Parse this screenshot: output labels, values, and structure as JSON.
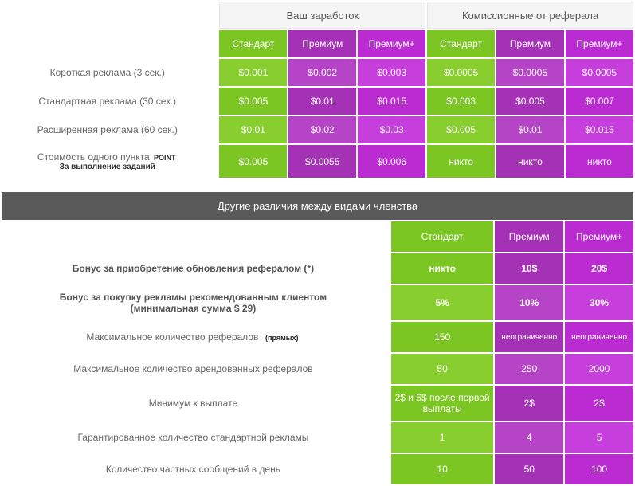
{
  "colors": {
    "green": "#7cc623",
    "green_light": "#89ce2f",
    "purple1": "#a531b7",
    "purple1_light": "#b544c6",
    "purple2": "#ba2bd2",
    "purple2_light": "#c63fdd",
    "banner": "#5a5a5a",
    "grey_bg": "#f5f5f5",
    "text": "#555555"
  },
  "table1": {
    "group_headers": {
      "earn": "Ваш заработок",
      "ref": "Комиссионные от реферала"
    },
    "tiers": {
      "std": "Стандарт",
      "prem": "Премиум",
      "premp": "Премиум+"
    },
    "rows": [
      {
        "label": "Короткая реклама (3 сек.)",
        "earn": {
          "std": "$0.001",
          "prem": "$0.002",
          "premp": "$0.003"
        },
        "ref": {
          "std": "$0.0005",
          "prem": "$0.0005",
          "premp": "$0.0005"
        }
      },
      {
        "label": "Стандартная реклама (30 сек.)",
        "earn": {
          "std": "$0.005",
          "prem": "$0.01",
          "premp": "$0.015"
        },
        "ref": {
          "std": "$0.003",
          "prem": "$0.005",
          "premp": "$0.007"
        }
      },
      {
        "label": "Расширенная реклама (60 сек.)",
        "earn": {
          "std": "$0.01",
          "prem": "$0.02",
          "premp": "$0.03"
        },
        "ref": {
          "std": "$0.005",
          "prem": "$0.01",
          "premp": "$0.015"
        }
      },
      {
        "label": "Стоимость одного пункта",
        "tag": "POINT",
        "sublabel": "За выполнение заданий",
        "earn": {
          "std": "$0.005",
          "prem": "$0.0055",
          "premp": "$0.006"
        },
        "ref": {
          "std": "никто",
          "prem": "никто",
          "premp": "никто"
        }
      }
    ]
  },
  "banner": "Другие различия между видами членства",
  "table2": {
    "tiers": {
      "std": "Стандарт",
      "prem": "Премиум",
      "premp": "Премиум+"
    },
    "rows": [
      {
        "label": "Бонус за приобретение обновления рефералом (*)",
        "bold": true,
        "std": "никто",
        "prem": "10$",
        "premp": "20$"
      },
      {
        "label": "Бонус за покупку рекламы рекомендованным клиентом",
        "label2": "(минимальная сумма $ 29)",
        "bold": true,
        "std": "5%",
        "prem": "10%",
        "premp": "30%"
      },
      {
        "label": "Максимальное количество рефералов",
        "tag": "(прямых)",
        "std": "150",
        "prem": "неограниченно",
        "premp": "неограниченно"
      },
      {
        "label": "Максимальное количество арендованных рефералов",
        "std": "50",
        "prem": "250",
        "premp": "2000"
      },
      {
        "label": "Минимум к выплате",
        "std": "2$ и 6$ после первой выплаты",
        "prem": "2$",
        "premp": "2$"
      },
      {
        "label": "Гарантированное количество стандартной рекламы",
        "std": "1",
        "prem": "4",
        "premp": "5"
      },
      {
        "label": "Количество частных сообщений в день",
        "std": "10",
        "prem": "50",
        "premp": "100"
      }
    ]
  }
}
